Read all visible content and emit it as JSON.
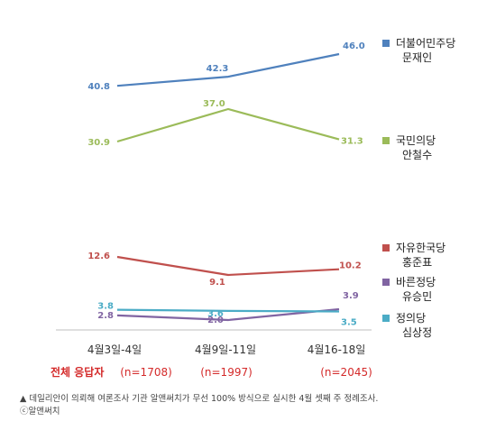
{
  "chart_data": {
    "type": "line",
    "categories": [
      "4월3일-4일",
      "4월9일-11일",
      "4월16-18일"
    ],
    "sample_sizes": [
      "(n=1708)",
      "(n=1997)",
      "(n=2045)"
    ],
    "sample_label": "전체 응답자",
    "value_labels": [
      [
        "40.8",
        "42.3",
        "46.0"
      ],
      [
        "30.9",
        "37.0",
        "31.3"
      ],
      [
        "12.6",
        "9.1",
        "10.2"
      ],
      [
        "2.8",
        "2.0",
        "3.9"
      ],
      [
        "3.8",
        "3.6",
        "3.5"
      ]
    ],
    "series": [
      {
        "name": "더불어민주당 문재인",
        "party": "더불어민주당",
        "candidate": "문재인",
        "color": "#4f81bd",
        "values": [
          40.8,
          42.3,
          46.0
        ]
      },
      {
        "name": "국민의당 안철수",
        "party": "국민의당",
        "candidate": "안철수",
        "color": "#9bbb59",
        "values": [
          30.9,
          37.0,
          31.3
        ]
      },
      {
        "name": "자유한국당 홍준표",
        "party": "자유한국당",
        "candidate": "홍준표",
        "color": "#c0504d",
        "values": [
          12.6,
          9.1,
          10.2
        ]
      },
      {
        "name": "바른정당 유승민",
        "party": "바른정당",
        "candidate": "유승민",
        "color": "#8064a2",
        "values": [
          2.8,
          2.0,
          3.9
        ]
      },
      {
        "name": "정의당 심상정",
        "party": "정의당",
        "candidate": "심상정",
        "color": "#4bacc6",
        "values": [
          3.8,
          3.6,
          3.5
        ]
      }
    ],
    "legend_placement": "right",
    "grid": false
  },
  "caption": {
    "line1": "▲ 데일리안이 의뢰해 여론조사 기관 알앤써치가 무선 100% 방식으로 실시한 4월 셋째 주 정례조사.",
    "line2": "ⓒ알앤써치"
  }
}
